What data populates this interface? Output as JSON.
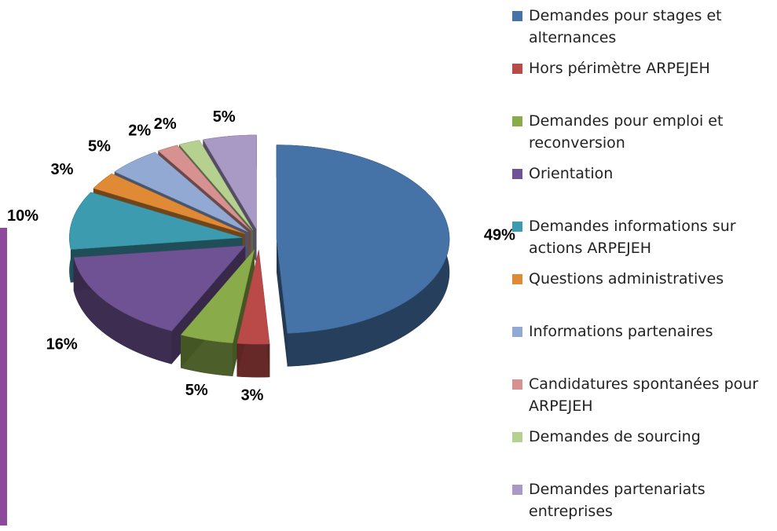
{
  "chart_data": {
    "type": "pie",
    "categories": [
      "Demandes pour stages et alternances",
      "Hors périmètre ARPEJEH",
      "Demandes pour emploi et reconversion",
      "Orientation",
      "Demandes informations sur actions ARPEJEH",
      "Questions administratives",
      "Informations partenaires",
      "Candidatures spontanées pour ARPEJEH",
      "Demandes de sourcing",
      "Demandes partenariats entreprises"
    ],
    "values": [
      49,
      3,
      5,
      16,
      10,
      3,
      5,
      2,
      2,
      5
    ],
    "value_labels": [
      "49%",
      "3%",
      "5%",
      "16%",
      "10%",
      "3%",
      "5%",
      "2%",
      "2%",
      "5%"
    ],
    "colors": [
      "#4572a7",
      "#b94a48",
      "#8aab4a",
      "#6f5294",
      "#3d9bb0",
      "#e08a35",
      "#92a9d4",
      "#d69190",
      "#b5d08f",
      "#a899c5"
    ],
    "legend": "right"
  }
}
